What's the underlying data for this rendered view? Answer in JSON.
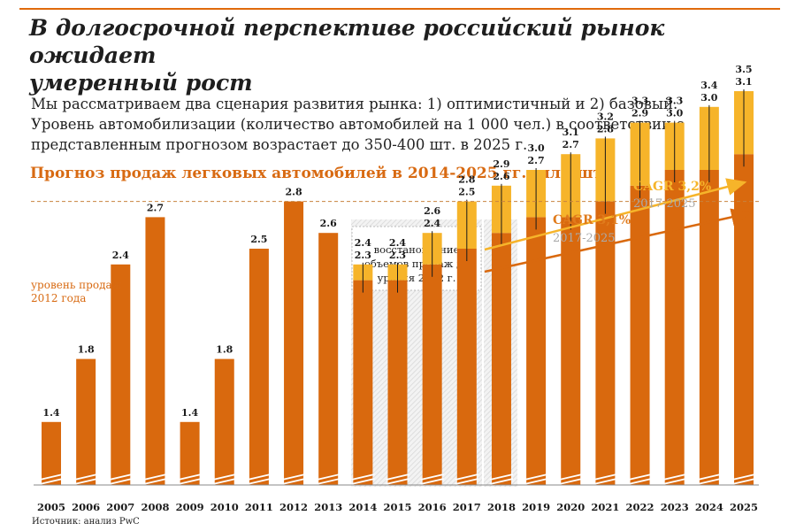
{
  "header": {
    "title_line1": "В долгосрочной перспективе российский рынок ожидает",
    "title_line2": "умеренный рост",
    "subtitle_line1": "Мы рассматриваем два сценария развития рынка: 1) оптимистичный и 2) базовый.",
    "subtitle_line2": "Уровень автомобилизации (количество автомобилей на 1 000 чел.) в соответствии с",
    "subtitle_line3": "представленным прогнозом возрастает до 350-400 шт. в 2025 г."
  },
  "source": "Источник: анализ PwC",
  "colors": {
    "base": "#d9690e",
    "optimistic": "#f6b42a",
    "accent": "#e07b1c",
    "grey": "#aaaaaa"
  },
  "chart_data": {
    "type": "bar",
    "title": "Прогноз продаж легковых автомобилей в 2014-2025 гг., млн шт.",
    "categories": [
      "2005",
      "2006",
      "2007",
      "2008",
      "2009",
      "2010",
      "2011",
      "2012",
      "2013",
      "2014",
      "2015",
      "2016",
      "2017",
      "2018",
      "2019",
      "2020",
      "2021",
      "2022",
      "2023",
      "2024",
      "2025"
    ],
    "series": [
      {
        "values": [
          1.4,
          1.8,
          2.4,
          2.7,
          1.4,
          1.8,
          2.5,
          2.8,
          2.6,
          2.3,
          2.3,
          2.4,
          2.5,
          2.6,
          2.7,
          2.7,
          2.8,
          2.9,
          3.0,
          3.0,
          3.1
        ]
      },
      {
        "values": [
          null,
          null,
          null,
          null,
          null,
          null,
          null,
          null,
          null,
          2.4,
          2.4,
          2.6,
          2.8,
          2.9,
          3.0,
          3.1,
          3.2,
          3.3,
          3.3,
          3.4,
          3.5
        ]
      }
    ],
    "labels_base": [
      "1.4",
      "1.8",
      "2.4",
      "2.7",
      "1.4",
      "1.8",
      "2.5",
      "2.8",
      "2.6",
      "2.3",
      "2.3",
      "2.4",
      "2.5",
      "2.6",
      "2.7",
      "2.7",
      "2.8",
      "2.9",
      "3.0",
      "3.0",
      "3.1"
    ],
    "labels_opt": [
      "",
      "",
      "",
      "",
      "",
      "",
      "",
      "",
      "",
      "2.4",
      "2.4",
      "2.6",
      "2.8",
      "2.9",
      "3.0",
      "3.1",
      "3.2",
      "3.3",
      "3.3",
      "3.4",
      "3.5"
    ],
    "reference": {
      "value": 2.8,
      "label_line1": "уровень продаж",
      "label_line2": "2012 года"
    },
    "annotation": {
      "line1": "восстановление",
      "line2": "объемов продаж до",
      "line3": "уровня 2012 г.",
      "from": "2014",
      "to": "2017"
    },
    "forecast_start": "2018",
    "cagr": [
      {
        "label": "CAGR 3,2%",
        "period": "2017-2025"
      },
      {
        "label": "CAGR 3,1%",
        "period": "2017-2025"
      }
    ],
    "broken_axis": true,
    "ylim": [
      1.0,
      3.6
    ]
  }
}
